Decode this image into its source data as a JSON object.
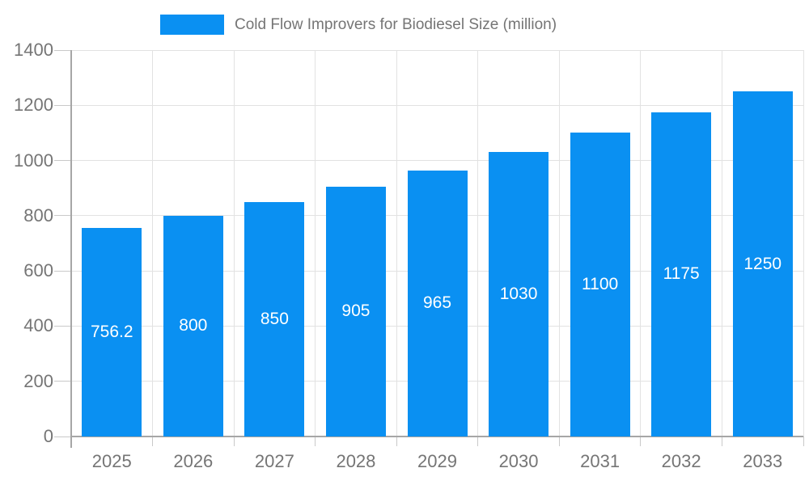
{
  "chart_data": {
    "type": "bar",
    "title": "Cold Flow Improvers for Biodiesel Size (million)",
    "categories": [
      "2025",
      "2026",
      "2027",
      "2028",
      "2029",
      "2030",
      "2031",
      "2032",
      "2033"
    ],
    "values": [
      756.2,
      800,
      850,
      905,
      965,
      1030,
      1100,
      1175,
      1250
    ],
    "bar_labels": [
      "756.2",
      "800",
      "850",
      "905",
      "965",
      "1030",
      "1100",
      "1175",
      "1250"
    ],
    "xlabel": "",
    "ylabel": "",
    "ylim": [
      0,
      1400
    ],
    "ytick_step": 200,
    "yticks": [
      0,
      200,
      400,
      600,
      800,
      1000,
      1200,
      1400
    ],
    "grid": true,
    "legend_position": "top",
    "colors": {
      "bar": "#0a90f2",
      "grid": "#e2e2e2",
      "axis": "#a6a6a6",
      "tick": "#c9c9c9",
      "tick_label": "#757575",
      "title": "#757575",
      "data_label": "#ffffff",
      "background": "#ffffff"
    }
  }
}
